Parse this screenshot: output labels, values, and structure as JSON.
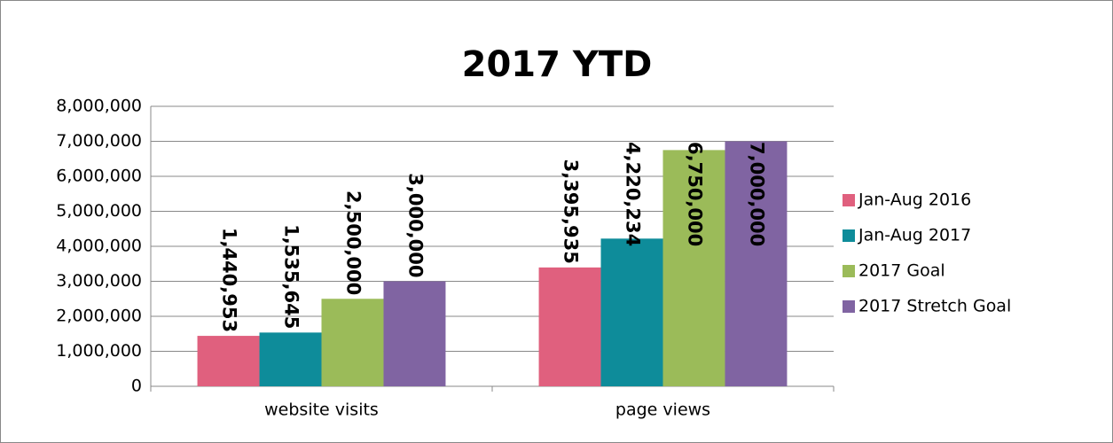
{
  "chart_data": {
    "type": "bar",
    "title": "2017 YTD",
    "categories": [
      "website visits",
      "page views"
    ],
    "series": [
      {
        "name": "Jan-Aug 2016",
        "color": "#e0607e",
        "values": [
          1440953,
          3395935
        ],
        "value_labels": [
          "1,440,953",
          "3,395,935"
        ]
      },
      {
        "name": "Jan-Aug 2017",
        "color": "#0e8c9a",
        "values": [
          1535645,
          4220234
        ],
        "value_labels": [
          "1,535,645",
          "4,220,234"
        ]
      },
      {
        "name": "2017 Goal",
        "color": "#9bbb59",
        "values": [
          2500000,
          6750000
        ],
        "value_labels": [
          "2,500,000",
          "6,750,000"
        ]
      },
      {
        "name": "2017 Stretch Goal",
        "color": "#8064a2",
        "values": [
          3000000,
          7000000
        ],
        "value_labels": [
          "3,000,000",
          "7,000,000"
        ]
      }
    ],
    "ylim": [
      0,
      8000000
    ],
    "yticks": [
      0,
      {
        "value": 1000000,
        "label": "1,000,000"
      },
      {
        "value": 2000000,
        "label": "2,000,000"
      },
      {
        "value": 3000000,
        "label": "3,000,000"
      },
      {
        "value": 4000000,
        "label": "4,000,000"
      },
      {
        "value": 5000000,
        "label": "5,000,000"
      },
      {
        "value": 6000000,
        "label": "6,000,000"
      },
      {
        "value": 7000000,
        "label": "7,000,000"
      },
      {
        "value": 8000000,
        "label": "8,000,000"
      }
    ],
    "grid": true,
    "legend": "right"
  }
}
